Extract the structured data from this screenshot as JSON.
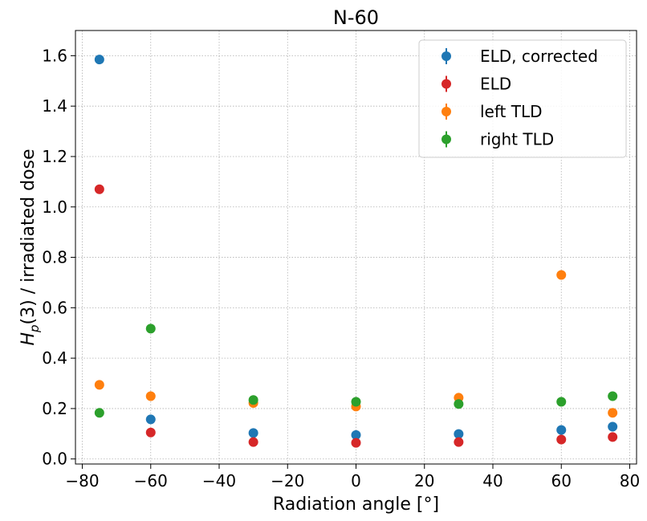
{
  "chart_data": {
    "type": "scatter",
    "title": "N-60",
    "xlabel": "Radiation angle [°]",
    "ylabel_base": "H",
    "ylabel_sub": "p",
    "ylabel_rest": "(3) / irradiated dose",
    "xlim": [
      -82,
      82
    ],
    "ylim": [
      -0.02,
      1.7
    ],
    "x_ticks": [
      -80,
      -60,
      -40,
      -20,
      0,
      20,
      40,
      60,
      80
    ],
    "x_tick_labels": [
      "−80",
      "−60",
      "−40",
      "−20",
      "0",
      "20",
      "40",
      "60",
      "80"
    ],
    "y_ticks": [
      0.0,
      0.2,
      0.4,
      0.6,
      0.8,
      1.0,
      1.2,
      1.4,
      1.6
    ],
    "y_tick_labels": [
      "0.0",
      "0.2",
      "0.4",
      "0.6",
      "0.8",
      "1.0",
      "1.2",
      "1.4",
      "1.6"
    ],
    "grid": true,
    "legend_position": "top-right",
    "series": [
      {
        "name": "ELD, corrected",
        "color": "#1f77b4",
        "x": [
          -75,
          -60,
          -30,
          0,
          30,
          60,
          75
        ],
        "y": [
          1.585,
          0.157,
          0.103,
          0.095,
          0.099,
          0.115,
          0.128
        ]
      },
      {
        "name": "ELD",
        "color": "#d62728",
        "x": [
          -75,
          -60,
          -30,
          0,
          30,
          60,
          75
        ],
        "y": [
          1.07,
          0.105,
          0.067,
          0.064,
          0.067,
          0.077,
          0.087
        ]
      },
      {
        "name": "left TLD",
        "color": "#ff7f0e",
        "x": [
          -75,
          -60,
          -30,
          0,
          30,
          60,
          75
        ],
        "y": [
          0.294,
          0.249,
          0.222,
          0.208,
          0.243,
          0.73,
          0.183
        ]
      },
      {
        "name": "right TLD",
        "color": "#2ca02c",
        "x": [
          -75,
          -60,
          -30,
          0,
          30,
          60,
          75
        ],
        "y": [
          0.183,
          0.517,
          0.234,
          0.227,
          0.218,
          0.227,
          0.249
        ]
      }
    ]
  }
}
